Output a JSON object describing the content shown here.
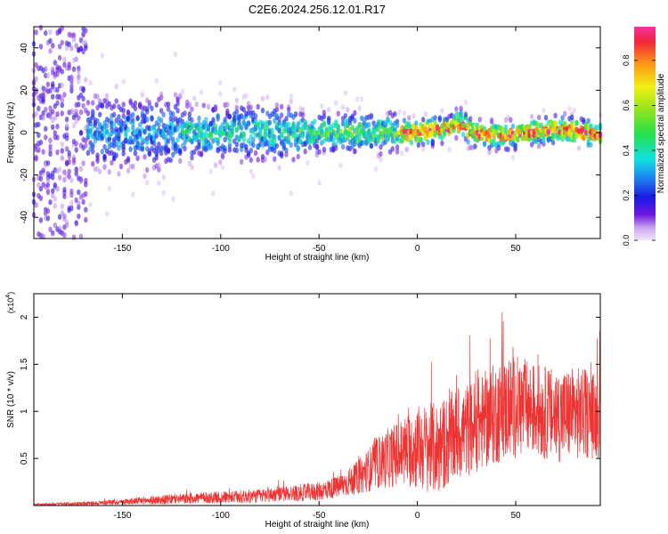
{
  "figure_title": "C2E6.2024.256.12.01.R17",
  "colors": {
    "snr_line": "#ee3333",
    "spectrogram_background": "#ffffff",
    "axis": "#000000"
  },
  "chart_data": [
    {
      "type": "heatmap",
      "name": "spectrogram",
      "title": "C2E6.2024.256.12.01.R17",
      "xlabel": "Height of straight line (km)",
      "ylabel": "Frequency (Hz)",
      "xlim": [
        -195,
        93
      ],
      "ylim": [
        -50,
        50
      ],
      "xticks": [
        -150,
        -100,
        -50,
        0,
        50
      ],
      "yticks": [
        -40,
        -20,
        0,
        20,
        40
      ],
      "grid": false,
      "colorbar": {
        "label": "Normalized spectral amplitude",
        "range": [
          0.0,
          0.95
        ],
        "ticks": [
          0.0,
          0.2,
          0.4,
          0.6,
          0.8
        ],
        "colormap": "rainbow"
      },
      "ridge_frequency_hz": 0
    },
    {
      "type": "line",
      "name": "snr",
      "xlabel": "Height of straight line (km)",
      "ylabel": "SNR (10 * v/v)",
      "y_multiplier": "(x10",
      "y_multiplier_exponent": "4",
      "y_multiplier_close": ")",
      "xlim": [
        -195,
        93
      ],
      "ylim": [
        0,
        2.25
      ],
      "xticks": [
        -150,
        -100,
        -50,
        0,
        50
      ],
      "yticks": [
        0.5,
        1.0,
        1.5,
        2.0
      ],
      "grid": false,
      "envelope_x": [
        -195,
        -170,
        -150,
        -130,
        -110,
        -90,
        -70,
        -50,
        -40,
        -30,
        -20,
        -10,
        0,
        10,
        20,
        30,
        40,
        50,
        60,
        70,
        80,
        93
      ],
      "envelope_mean": [
        0.01,
        0.02,
        0.04,
        0.06,
        0.08,
        0.09,
        0.12,
        0.15,
        0.2,
        0.3,
        0.45,
        0.55,
        0.62,
        0.6,
        0.75,
        0.85,
        0.98,
        1.05,
        1.02,
        0.95,
        0.98,
        0.95
      ],
      "envelope_spread": [
        0.01,
        0.02,
        0.03,
        0.05,
        0.06,
        0.07,
        0.08,
        0.1,
        0.12,
        0.18,
        0.28,
        0.35,
        0.45,
        0.5,
        0.5,
        0.5,
        0.55,
        0.55,
        0.5,
        0.5,
        0.5,
        0.45
      ]
    }
  ]
}
